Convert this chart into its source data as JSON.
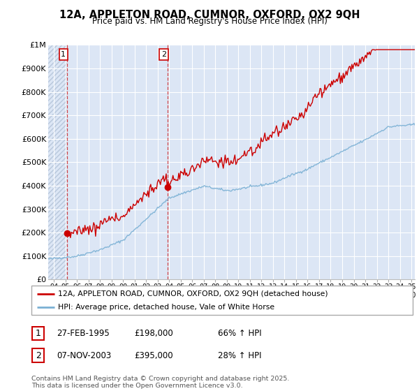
{
  "title": "12A, APPLETON ROAD, CUMNOR, OXFORD, OX2 9QH",
  "subtitle": "Price paid vs. HM Land Registry's House Price Index (HPI)",
  "bg_color": "#ffffff",
  "plot_bg_color": "#dce6f5",
  "hatch_color": "#b8c8dc",
  "grid_color": "#ffffff",
  "line1_color": "#cc0000",
  "line2_color": "#7ab0d4",
  "sale1_date_num": 1995.12,
  "sale1_price": 198000,
  "sale2_date_num": 2003.84,
  "sale2_price": 395000,
  "legend_line1": "12A, APPLETON ROAD, CUMNOR, OXFORD, OX2 9QH (detached house)",
  "legend_line2": "HPI: Average price, detached house, Vale of White Horse",
  "table_row1": [
    "1",
    "27-FEB-1995",
    "£198,000",
    "66% ↑ HPI"
  ],
  "table_row2": [
    "2",
    "07-NOV-2003",
    "£395,000",
    "28% ↑ HPI"
  ],
  "footnote": "Contains HM Land Registry data © Crown copyright and database right 2025.\nThis data is licensed under the Open Government Licence v3.0.",
  "xmin": 1993.5,
  "xmax": 2025.3,
  "ymin": 0,
  "ymax": 1000000,
  "yticks": [
    0,
    100000,
    200000,
    300000,
    400000,
    500000,
    600000,
    700000,
    800000,
    900000,
    1000000
  ],
  "ytick_labels": [
    "£0",
    "£100K",
    "£200K",
    "£300K",
    "£400K",
    "£500K",
    "£600K",
    "£700K",
    "£800K",
    "£900K",
    "£1M"
  ]
}
